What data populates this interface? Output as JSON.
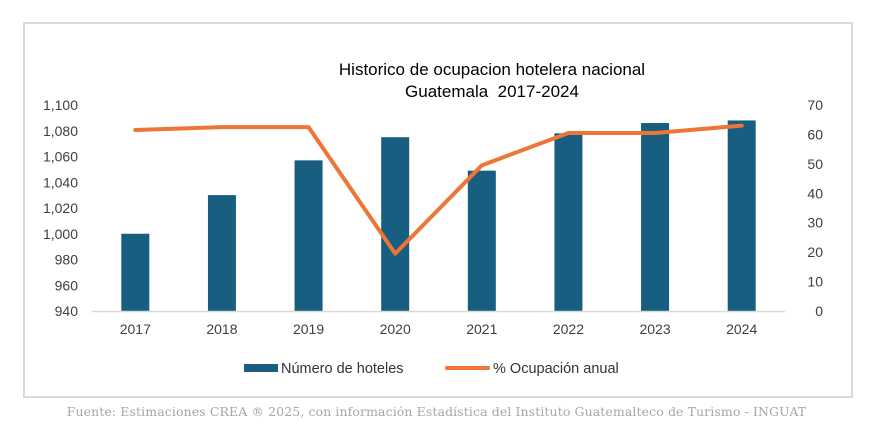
{
  "chart_data": {
    "type": "bar",
    "title": "Historico de ocupacion hotelera nacional",
    "subtitle": "Guatemala  2017-2024",
    "categories": [
      "2017",
      "2018",
      "2019",
      "2020",
      "2021",
      "2022",
      "2023",
      "2024"
    ],
    "series": [
      {
        "name": "Número de hoteles",
        "type": "bar",
        "axis": "left",
        "color": "#175e80",
        "values": [
          1000,
          1030,
          1057,
          1075,
          1049,
          1078,
          1086,
          1088
        ]
      },
      {
        "name": "% Ocupación anual",
        "type": "line",
        "axis": "right",
        "color": "#ed7535",
        "values": [
          61.5,
          62.5,
          62.5,
          19.5,
          49.5,
          60.5,
          60.5,
          63
        ]
      }
    ],
    "y_left": {
      "min": 940,
      "max": 1100,
      "ticks": [
        940,
        960,
        980,
        1000,
        1020,
        1040,
        1060,
        1080,
        1100
      ],
      "tick_labels": [
        "940",
        "960",
        "980",
        "1,000",
        "1,020",
        "1,040",
        "1,060",
        "1,080",
        "1,100"
      ]
    },
    "y_right": {
      "min": 0,
      "max": 70,
      "ticks": [
        0,
        10,
        20,
        30,
        40,
        50,
        60,
        70
      ],
      "tick_labels": [
        "0",
        "10",
        "20",
        "30",
        "40",
        "50",
        "60",
        "70"
      ]
    },
    "xlabel": "",
    "ylabel": "",
    "grid": false,
    "legend_position": "bottom"
  },
  "source_note": "Fuente: Estimaciones CREA ® 2025, con información Estadística del Instituto Guatemalteco de Turismo - INGUAT"
}
